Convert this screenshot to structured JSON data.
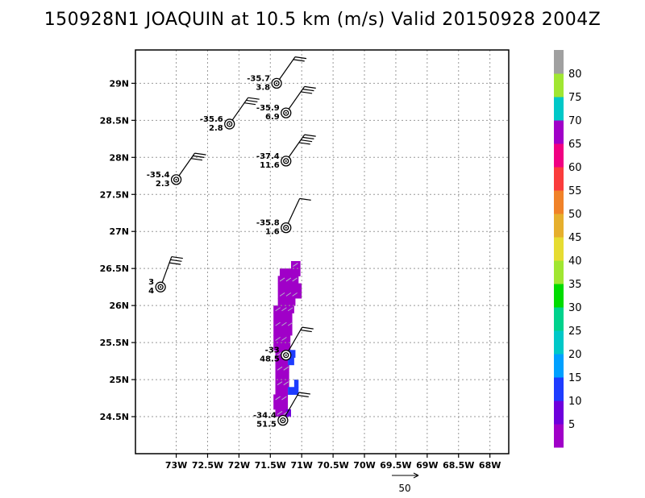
{
  "chart_data": {
    "type": "scatter",
    "title": "150928N1 JOAQUIN at 10.5 km (m/s) Valid 20150928 2004Z",
    "xlim": [
      -73.65,
      -67.7
    ],
    "ylim": [
      24.0,
      29.45
    ],
    "x_ticks": [
      -73,
      -72.5,
      -72,
      -71.5,
      -71,
      -70.5,
      -70,
      -69.5,
      -69,
      -68.5,
      -68
    ],
    "x_tick_labels": [
      "73W",
      "72.5W",
      "72W",
      "71.5W",
      "71W",
      "70.5W",
      "70W",
      "69.5W",
      "69W",
      "68.5W",
      "68W"
    ],
    "y_ticks": [
      24.5,
      25,
      25.5,
      26,
      26.5,
      27,
      27.5,
      28,
      28.5,
      29
    ],
    "y_tick_labels": [
      "24.5N",
      "25N",
      "25.5N",
      "26N",
      "26.5N",
      "27N",
      "27.5N",
      "28N",
      "28.5N",
      "29N"
    ],
    "grid": true,
    "stations": [
      {
        "lon": -71.4,
        "lat": 29.0,
        "upper": "-35.7",
        "lower": "3.8",
        "barb_dir": 35,
        "barbs": 2
      },
      {
        "lon": -71.25,
        "lat": 28.6,
        "upper": "-35.9",
        "lower": "6.9",
        "barb_dir": 35,
        "barbs": 3
      },
      {
        "lon": -72.15,
        "lat": 28.45,
        "upper": "-35.6",
        "lower": "2.8",
        "barb_dir": 35,
        "barbs": 3
      },
      {
        "lon": -71.25,
        "lat": 27.95,
        "upper": "-37.4",
        "lower": "11.6",
        "barb_dir": 35,
        "barbs": 4
      },
      {
        "lon": -73.0,
        "lat": 27.7,
        "upper": "-35.4",
        "lower": "2.3",
        "barb_dir": 35,
        "barbs": 3
      },
      {
        "lon": -71.25,
        "lat": 27.05,
        "upper": "-35.8",
        "lower": "1.6",
        "barb_dir": 25,
        "barbs": 1
      },
      {
        "lon": -73.25,
        "lat": 26.25,
        "upper": "3",
        "lower": "4",
        "barb_dir": 20,
        "barbs": 3
      },
      {
        "lon": -71.25,
        "lat": 25.33,
        "upper": "-33",
        "lower": "48.5",
        "barb_dir": 30,
        "barbs": 2
      },
      {
        "lon": -71.3,
        "lat": 24.45,
        "upper": "-34.4",
        "lower": "51.5",
        "barb_dir": 30,
        "barbs": 2
      }
    ],
    "shaded_rows": [
      {
        "lat": 26.55,
        "lon_from": -71.17,
        "lon_to": -71.02,
        "value": 67
      },
      {
        "lat": 26.45,
        "lon_from": -71.35,
        "lon_to": -71.02,
        "value": 67
      },
      {
        "lat": 26.35,
        "lon_from": -71.38,
        "lon_to": -71.05,
        "value": 67
      },
      {
        "lat": 26.25,
        "lon_from": -71.38,
        "lon_to": -71.0,
        "value": 67
      },
      {
        "lat": 26.15,
        "lon_from": -71.38,
        "lon_to": -71.0,
        "value": 67
      },
      {
        "lat": 26.05,
        "lon_from": -71.38,
        "lon_to": -71.1,
        "value": 67
      },
      {
        "lat": 25.95,
        "lon_from": -71.45,
        "lon_to": -71.12,
        "value": 67
      },
      {
        "lat": 25.85,
        "lon_from": -71.45,
        "lon_to": -71.15,
        "value": 67
      },
      {
        "lat": 25.75,
        "lon_from": -71.45,
        "lon_to": -71.15,
        "value": 67
      },
      {
        "lat": 25.65,
        "lon_from": -71.45,
        "lon_to": -71.15,
        "value": 67
      },
      {
        "lat": 25.55,
        "lon_from": -71.45,
        "lon_to": -71.18,
        "value": 67
      },
      {
        "lat": 25.45,
        "lon_from": -71.45,
        "lon_to": -71.18,
        "value": 67
      },
      {
        "lat": 25.35,
        "lon_from": -71.42,
        "lon_to": -71.22,
        "value": 67
      },
      {
        "lat": 25.25,
        "lon_from": -71.42,
        "lon_to": -71.22,
        "value": 67
      },
      {
        "lat": 25.15,
        "lon_from": -71.42,
        "lon_to": -71.2,
        "value": 67
      },
      {
        "lat": 25.05,
        "lon_from": -71.42,
        "lon_to": -71.2,
        "value": 67
      },
      {
        "lat": 24.95,
        "lon_from": -71.42,
        "lon_to": -71.2,
        "value": 67
      },
      {
        "lat": 24.85,
        "lon_from": -71.42,
        "lon_to": -71.22,
        "value": 67
      },
      {
        "lat": 24.75,
        "lon_from": -71.45,
        "lon_to": -71.22,
        "value": 67
      },
      {
        "lat": 24.65,
        "lon_from": -71.45,
        "lon_to": -71.22,
        "value": 67
      },
      {
        "lat": 24.55,
        "lon_from": -71.42,
        "lon_to": -71.22,
        "value": 67
      }
    ],
    "blue_cells": [
      {
        "lat": 25.35,
        "lon_from": -71.2,
        "lon_to": -71.1,
        "value": 12
      },
      {
        "lat": 25.25,
        "lon_from": -71.22,
        "lon_to": -71.12,
        "value": 12
      },
      {
        "lat": 24.95,
        "lon_from": -71.12,
        "lon_to": -71.05,
        "value": 12
      },
      {
        "lat": 24.85,
        "lon_from": -71.22,
        "lon_to": -71.05,
        "value": 12
      },
      {
        "lat": 24.55,
        "lon_from": -71.25,
        "lon_to": -71.17,
        "value": 8
      }
    ],
    "colorbar": {
      "labels": [
        "5",
        "10",
        "15",
        "20",
        "25",
        "30",
        "35",
        "40",
        "45",
        "50",
        "55",
        "60",
        "65",
        "70",
        "75",
        "80"
      ],
      "colors": [
        "#a000c8",
        "#6e00dc",
        "#1e3cff",
        "#00a0ff",
        "#00c8c8",
        "#00d28c",
        "#00dc00",
        "#a0e632",
        "#e6dc32",
        "#e6af2d",
        "#f08228",
        "#fa3c3c",
        "#f00082",
        "#a000c8",
        "#00c8c8",
        "#a0e632",
        "#a0a0a0"
      ]
    },
    "reference_vector": {
      "label": "50"
    }
  }
}
